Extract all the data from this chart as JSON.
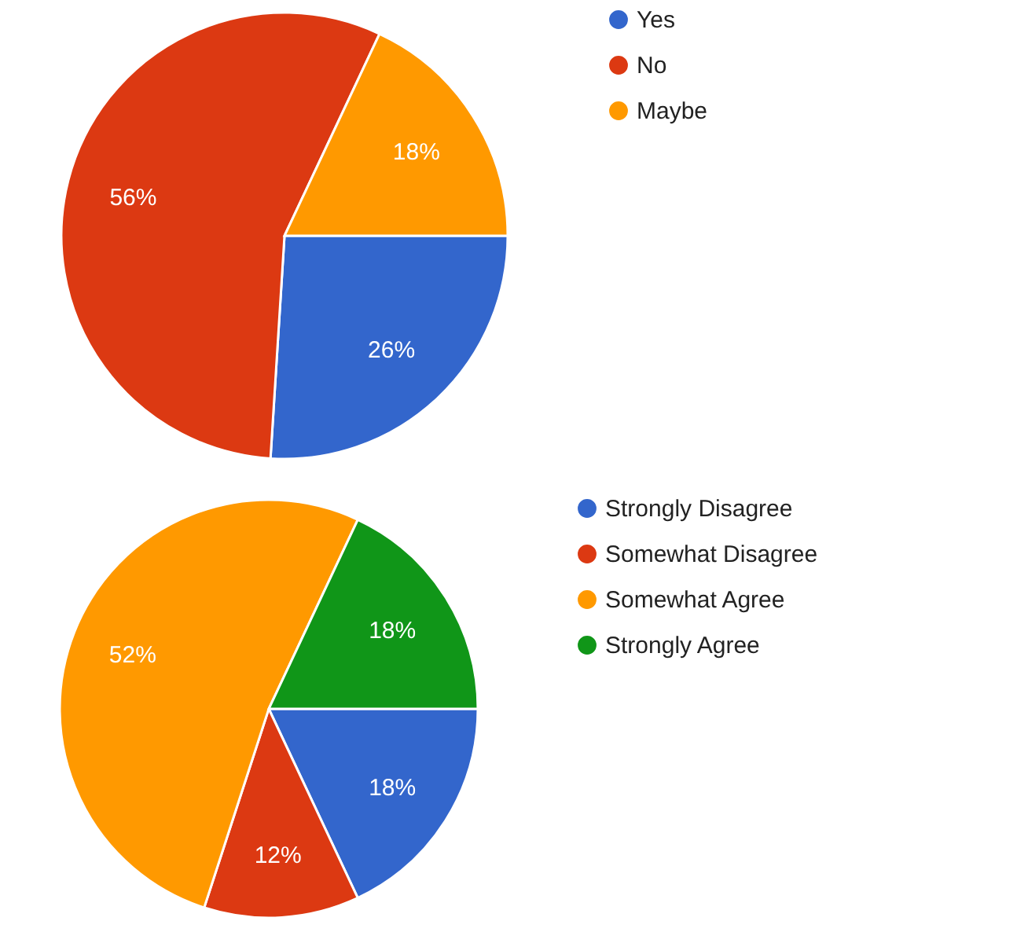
{
  "chart_data": [
    {
      "type": "pie",
      "categories": [
        "Yes",
        "No",
        "Maybe"
      ],
      "values": [
        26,
        56,
        18
      ],
      "colors": [
        "#3366cc",
        "#dc3912",
        "#ff9900"
      ],
      "value_labels": [
        "26%",
        "56%",
        "18%"
      ],
      "legend": "top right"
    },
    {
      "type": "pie",
      "categories": [
        "Strongly Disagree",
        "Somewhat Disagree",
        "Somewhat Agree",
        "Strongly Agree"
      ],
      "values": [
        18,
        12,
        52,
        18
      ],
      "colors": [
        "#3366cc",
        "#dc3912",
        "#ff9900",
        "#109618"
      ],
      "value_labels": [
        "18%",
        "12%",
        "52%",
        "18%"
      ],
      "legend": "top right"
    }
  ]
}
